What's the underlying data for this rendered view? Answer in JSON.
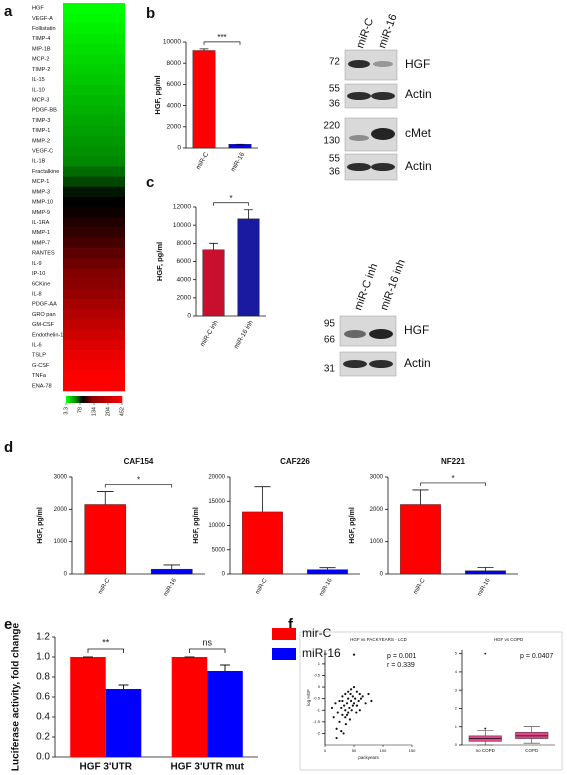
{
  "panels": [
    "a",
    "b",
    "c",
    "d",
    "e",
    "f"
  ],
  "blot_b": {
    "lanes": [
      "miR-C",
      "miR-16"
    ],
    "markers": [
      72,
      55,
      36,
      220,
      130,
      55,
      36
    ],
    "proteins": [
      "HGF",
      "Actin",
      "cMet",
      "Actin"
    ]
  },
  "blot_c": {
    "lanes": [
      "miR-C inh",
      "miR-16 inh"
    ],
    "markers": [
      95,
      66,
      31
    ],
    "proteins": [
      "HGF",
      "Actin"
    ]
  },
  "chart_data": [
    {
      "type": "heatmap",
      "categories": [
        "HGF",
        "VEGF-A",
        "Follistatin",
        "TIMP-4",
        "MIP-1B",
        "MCP-2",
        "TIMP-2",
        "IL-15",
        "IL-10",
        "MCP-3",
        "PDGF-BB",
        "TIMP-3",
        "TIMP-1",
        "MMP-2",
        "VEGF-C",
        "IL-1B",
        "Fractalkine",
        "MCP-1",
        "MMP-3",
        "MMP-10",
        "MMP-9",
        "IL-1RA",
        "MMP-1",
        "MMP-7",
        "RANTES",
        "IL-9",
        "IP-10",
        "6CKine",
        "IL-8",
        "PDGF-AA",
        "GRO pan",
        "GM-CSF",
        "Endothelin-1",
        "IL-6",
        "TSLP",
        "G-CSF",
        "TNFa",
        "ENA-78"
      ],
      "values": [
        3.3,
        8,
        13,
        18,
        23,
        28,
        33,
        38,
        43,
        48,
        53,
        58,
        63,
        68,
        73,
        78,
        90,
        105,
        125,
        134,
        140,
        150,
        160,
        170,
        180,
        190,
        200,
        204,
        230,
        260,
        290,
        320,
        350,
        380,
        410,
        430,
        445,
        452
      ],
      "cticks": [
        3.3,
        78,
        134,
        204,
        452
      ],
      "colors": [
        "#00ff00",
        "#008800",
        "#000000",
        "#8a0000",
        "#ff0000"
      ]
    },
    {
      "type": "bar",
      "categories": [
        "miR-C",
        "miR-16"
      ],
      "values": [
        9200,
        350
      ],
      "errors": [
        150,
        0
      ],
      "colors": [
        "#ff0000",
        "#0000ff"
      ],
      "ylabel": "HGF, pg/ml",
      "ylim": [
        0,
        10000
      ],
      "yticks": [
        0,
        2000,
        4000,
        6000,
        8000,
        10000
      ],
      "annotation": "***"
    },
    {
      "type": "bar",
      "categories": [
        "miR-C inh",
        "miR-16 inh"
      ],
      "values": [
        7300,
        10700
      ],
      "errors": [
        700,
        1000
      ],
      "colors": [
        "#c8102e",
        "#1a1aa0"
      ],
      "ylabel": "HGF, pg/ml",
      "ylim": [
        0,
        12000
      ],
      "yticks": [
        0,
        2000,
        4000,
        6000,
        8000,
        10000,
        12000
      ],
      "annotation": "*"
    },
    {
      "type": "bar",
      "title": "CAF154",
      "categories": [
        "miR-C",
        "miR-16"
      ],
      "values": [
        2150,
        150
      ],
      "errors": [
        400,
        130
      ],
      "colors": [
        "#ff0000",
        "#0000ff"
      ],
      "ylabel": "HGF, pg/ml",
      "ylim": [
        0,
        3000
      ],
      "yticks": [
        0,
        1000,
        2000,
        3000
      ],
      "annotation": "*"
    },
    {
      "type": "bar",
      "title": "CAF226",
      "categories": [
        "miR-C",
        "miR-16"
      ],
      "values": [
        12800,
        900
      ],
      "errors": [
        5200,
        400
      ],
      "colors": [
        "#ff0000",
        "#0000ff"
      ],
      "ylabel": "HGF, pg/ml",
      "ylim": [
        0,
        20000
      ],
      "yticks": [
        0,
        5000,
        10000,
        15000,
        20000
      ]
    },
    {
      "type": "bar",
      "title": "NF221",
      "categories": [
        "miR-C",
        "miR-16"
      ],
      "values": [
        2150,
        100
      ],
      "errors": [
        450,
        100
      ],
      "colors": [
        "#ff0000",
        "#0000ff"
      ],
      "ylabel": "HGF, pg/ml",
      "ylim": [
        0,
        3000
      ],
      "yticks": [
        0,
        1000,
        2000,
        3000
      ],
      "annotation": "*"
    },
    {
      "type": "grouped_bar",
      "categories": [
        "HGF 3'UTR",
        "HGF 3'UTR mut"
      ],
      "series": [
        {
          "name": "mir-C",
          "color": "#ff0000",
          "values": [
            1.0,
            1.0
          ],
          "errors": [
            0,
            0
          ]
        },
        {
          "name": "miR-16",
          "color": "#0000ff",
          "values": [
            0.68,
            0.86
          ],
          "errors": [
            0.04,
            0.06
          ]
        }
      ],
      "ylabel": "Luciferase activity, fold change",
      "ylim": [
        0,
        1.2
      ],
      "yticks": [
        {
          "value": 0,
          "label": "0.0"
        },
        0.2,
        0.4,
        0.6,
        0.8,
        {
          "value": 1,
          "label": "1.0"
        },
        1.2
      ],
      "annotations": [
        "**",
        "ns"
      ]
    },
    {
      "type": "scatter",
      "title": "HGF vs PACKYEARS - LCD",
      "xlabel": "packyears",
      "ylabel": "log HGF",
      "x": [
        50,
        12,
        15,
        18,
        20,
        22,
        25,
        25,
        28,
        30,
        30,
        32,
        33,
        35,
        35,
        36,
        38,
        40,
        40,
        40,
        42,
        43,
        45,
        45,
        46,
        48,
        50,
        50,
        52,
        55,
        55,
        58,
        60,
        60,
        62,
        65,
        70,
        75,
        80,
        20,
        28,
        38,
        44,
        30,
        35,
        48,
        54
      ],
      "y": [
        1.4,
        -0.9,
        -1.3,
        -0.7,
        -1.8,
        -1.1,
        -0.6,
        -1.5,
        -0.9,
        -1.2,
        -0.4,
        -2.0,
        -0.8,
        -1.0,
        -0.3,
        -1.6,
        -0.7,
        -0.5,
        -1.1,
        -0.2,
        -0.9,
        -1.4,
        -0.6,
        -0.1,
        -1.0,
        -0.4,
        -0.7,
        0.0,
        -0.5,
        -0.8,
        -0.2,
        -0.6,
        -0.3,
        -1.0,
        -0.5,
        -0.4,
        -0.7,
        -0.3,
        -0.6,
        -2.2,
        -1.9,
        -1.2,
        -0.3,
        -0.6,
        -1.3,
        -0.8,
        -1.1
      ],
      "xlim": [
        0,
        150
      ],
      "xticks": [
        0,
        50,
        100,
        150
      ],
      "ylim": [
        -2.5,
        1.6
      ],
      "yticks": [
        -2,
        -1.5,
        -1,
        -0.5,
        0,
        0.5,
        1
      ],
      "color": "#111111",
      "annotations": [
        "p = 0.001",
        "r = 0.339"
      ]
    },
    {
      "type": "box",
      "title": "HGF vs COPD",
      "categories": [
        "no COPD",
        "COPD"
      ],
      "boxes": [
        {
          "min": 0.0,
          "q1": 0.2,
          "median": 0.35,
          "q3": 0.5,
          "max": 0.8
        },
        {
          "min": 0.1,
          "q1": 0.35,
          "median": 0.5,
          "q3": 0.7,
          "max": 1.0
        }
      ],
      "outliers": [
        [
          5.0,
          0.9
        ],
        []
      ],
      "ylim": [
        0,
        5.2
      ],
      "yticks": [
        0,
        1,
        2,
        3,
        4,
        5
      ],
      "color": "#e0488a",
      "annotations": [
        "p = 0.0407"
      ]
    }
  ]
}
